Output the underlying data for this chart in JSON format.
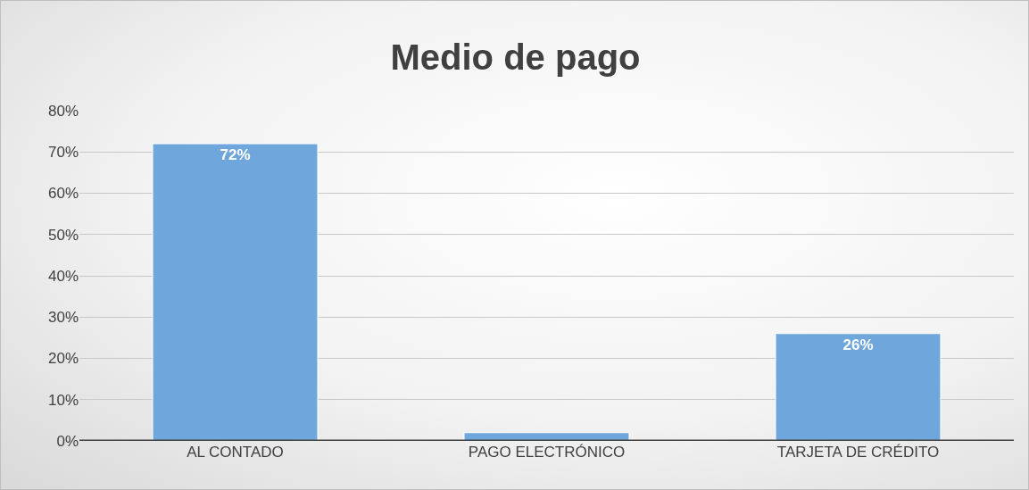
{
  "chart_data": {
    "type": "bar",
    "title": "Medio de pago",
    "categories": [
      "AL CONTADO",
      "PAGO ELECTRÓNICO",
      "TARJETA DE CRÉDITO"
    ],
    "values": [
      72,
      2,
      26
    ],
    "value_labels": [
      "72%",
      null,
      "26%"
    ],
    "color": "#6fa6dc",
    "ylim": [
      0,
      80
    ],
    "yticks": [
      {
        "value": 0,
        "label": "0%"
      },
      {
        "value": 10,
        "label": "10%"
      },
      {
        "value": 20,
        "label": "20%"
      },
      {
        "value": 30,
        "label": "30%"
      },
      {
        "value": 40,
        "label": "40%"
      },
      {
        "value": 50,
        "label": "50%"
      },
      {
        "value": 60,
        "label": "60%"
      },
      {
        "value": 70,
        "label": "70%"
      },
      {
        "value": 80,
        "label": "80%"
      }
    ],
    "grid": "y",
    "legend": false
  }
}
